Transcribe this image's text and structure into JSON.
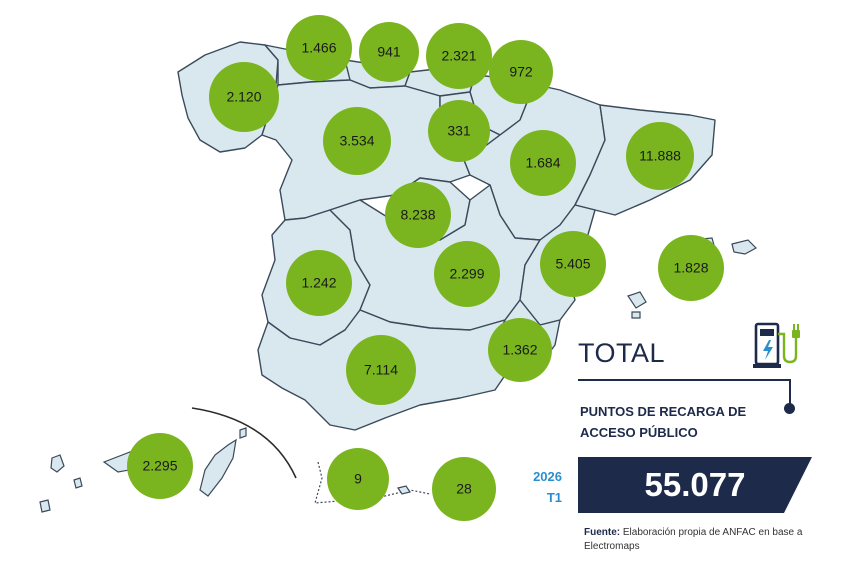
{
  "regions": [
    {
      "id": "galicia",
      "value": "2.120"
    },
    {
      "id": "asturias",
      "value": "1.466"
    },
    {
      "id": "cantabria",
      "value": "941"
    },
    {
      "id": "pais-vasco",
      "value": "2.321"
    },
    {
      "id": "navarra",
      "value": "972"
    },
    {
      "id": "castilla-leon",
      "value": "3.534"
    },
    {
      "id": "la-rioja",
      "value": "331"
    },
    {
      "id": "aragon",
      "value": "1.684"
    },
    {
      "id": "cataluna",
      "value": "11.888"
    },
    {
      "id": "madrid",
      "value": "8.238"
    },
    {
      "id": "extremadura",
      "value": "1.242"
    },
    {
      "id": "castilla-la-mancha",
      "value": "2.299"
    },
    {
      "id": "comunidad-valenciana",
      "value": "5.405"
    },
    {
      "id": "baleares",
      "value": "1.828"
    },
    {
      "id": "murcia",
      "value": "1.362"
    },
    {
      "id": "andalucia",
      "value": "7.114"
    },
    {
      "id": "canarias",
      "value": "2.295"
    },
    {
      "id": "ceuta",
      "value": "9"
    },
    {
      "id": "melilla",
      "value": "28"
    }
  ],
  "summary": {
    "title": "TOTAL",
    "subtitle_line1": "PUNTOS DE RECARGA DE",
    "subtitle_line2": "ACCESO PÚBLICO",
    "year": "2026",
    "quarter": "T1",
    "total": "55.077"
  },
  "source": {
    "label": "Fuente:",
    "text": "Elaboración propia de ANFAC en base a Electromaps"
  },
  "colors": {
    "bubble": "#7ab520",
    "land": "#d9e8ee",
    "navy": "#1e2a4a",
    "period": "#2a8fd0"
  },
  "icons": [
    "ev-charger-icon"
  ]
}
